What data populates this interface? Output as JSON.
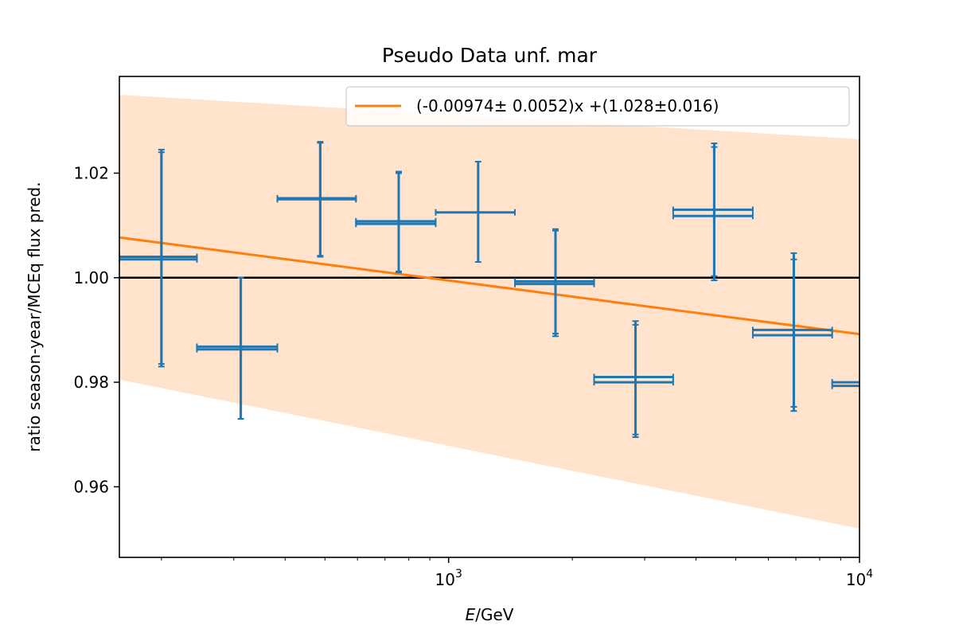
{
  "chart_data": {
    "type": "scatter",
    "title": "Pseudo Data unf. mar",
    "xlabel": "E/GeV",
    "xlabel_italic": "E",
    "xlabel_rest": "/GeV",
    "ylabel": "ratio season-year/MCEq flux pred.",
    "xscale": "log",
    "xlim": [
      158,
      10000
    ],
    "ylim": [
      0.9465,
      1.0385
    ],
    "x_ticks": [
      {
        "value": 1000,
        "base": "10",
        "exp": "3"
      },
      {
        "value": 10000,
        "base": "10",
        "exp": "4"
      }
    ],
    "y_ticks": [
      {
        "value": 0.96,
        "label": "0.96"
      },
      {
        "value": 0.98,
        "label": "0.98"
      },
      {
        "value": 1.0,
        "label": "1.00"
      },
      {
        "value": 1.02,
        "label": "1.02"
      }
    ],
    "reference_line": {
      "y": 1.0,
      "color": "#000000"
    },
    "fit": {
      "label": "(-0.00974± 0.0052)x +(1.028±0.016)",
      "color": "#ff7f0e",
      "band_color": "#ffe3cc",
      "line": [
        [
          158,
          1.0077
        ],
        [
          10000,
          0.9892
        ]
      ],
      "band_upper": [
        [
          158,
          1.035
        ],
        [
          10000,
          1.0265
        ]
      ],
      "band_lower": [
        [
          158,
          0.9805
        ],
        [
          10000,
          0.952
        ]
      ]
    },
    "legend": {
      "location": "top-right"
    },
    "series": [
      {
        "color": "#1f77b4",
        "points": [
          {
            "x": 200,
            "xlo": 158,
            "xhi": 244,
            "y": 1.0035,
            "ylo": 0.983,
            "yhi": 1.0245
          },
          {
            "x": 200,
            "xlo": 158,
            "xhi": 244,
            "y": 1.004,
            "ylo": 0.9835,
            "yhi": 1.024
          },
          {
            "x": 312,
            "xlo": 244,
            "xhi": 383,
            "y": 0.9863,
            "ylo": 0.973,
            "yhi": 1.0
          },
          {
            "x": 312,
            "xlo": 244,
            "xhi": 383,
            "y": 0.9868,
            "ylo": 0.973,
            "yhi": 1.0
          },
          {
            "x": 487,
            "xlo": 383,
            "xhi": 595,
            "y": 1.015,
            "ylo": 1.004,
            "yhi": 1.026
          },
          {
            "x": 487,
            "xlo": 383,
            "xhi": 595,
            "y": 1.0152,
            "ylo": 1.0042,
            "yhi": 1.0258
          },
          {
            "x": 756,
            "xlo": 595,
            "xhi": 930,
            "y": 1.0103,
            "ylo": 1.001,
            "yhi": 1.0203
          },
          {
            "x": 756,
            "xlo": 595,
            "xhi": 930,
            "y": 1.0108,
            "ylo": 1.0012,
            "yhi": 1.02
          },
          {
            "x": 1180,
            "xlo": 930,
            "xhi": 1450,
            "y": 1.0125,
            "ylo": 1.003,
            "yhi": 1.0222
          },
          {
            "x": 1820,
            "xlo": 1450,
            "xhi": 2260,
            "y": 0.9988,
            "ylo": 0.9888,
            "yhi": 1.009
          },
          {
            "x": 1820,
            "xlo": 1450,
            "xhi": 2260,
            "y": 0.9993,
            "ylo": 0.9893,
            "yhi": 1.0093
          },
          {
            "x": 2850,
            "xlo": 2260,
            "xhi": 3520,
            "y": 0.98,
            "ylo": 0.9695,
            "yhi": 0.991
          },
          {
            "x": 2850,
            "xlo": 2260,
            "xhi": 3520,
            "y": 0.981,
            "ylo": 0.97,
            "yhi": 0.9917
          },
          {
            "x": 4430,
            "xlo": 3520,
            "xhi": 5500,
            "y": 1.0118,
            "ylo": 0.9995,
            "yhi": 1.025
          },
          {
            "x": 4430,
            "xlo": 3520,
            "xhi": 5500,
            "y": 1.013,
            "ylo": 1.0003,
            "yhi": 1.0257
          },
          {
            "x": 6920,
            "xlo": 5500,
            "xhi": 8580,
            "y": 0.989,
            "ylo": 0.9745,
            "yhi": 1.0035
          },
          {
            "x": 6920,
            "xlo": 5500,
            "xhi": 8580,
            "y": 0.99,
            "ylo": 0.9753,
            "yhi": 1.0047
          },
          {
            "x": 10800,
            "xlo": 8580,
            "xhi": 13400,
            "y": 0.9793,
            "ylo": 0.9612,
            "yhi": 0.9972
          },
          {
            "x": 10800,
            "xlo": 8580,
            "xhi": 13400,
            "y": 0.98,
            "ylo": 0.9618,
            "yhi": 0.998
          }
        ]
      }
    ]
  }
}
